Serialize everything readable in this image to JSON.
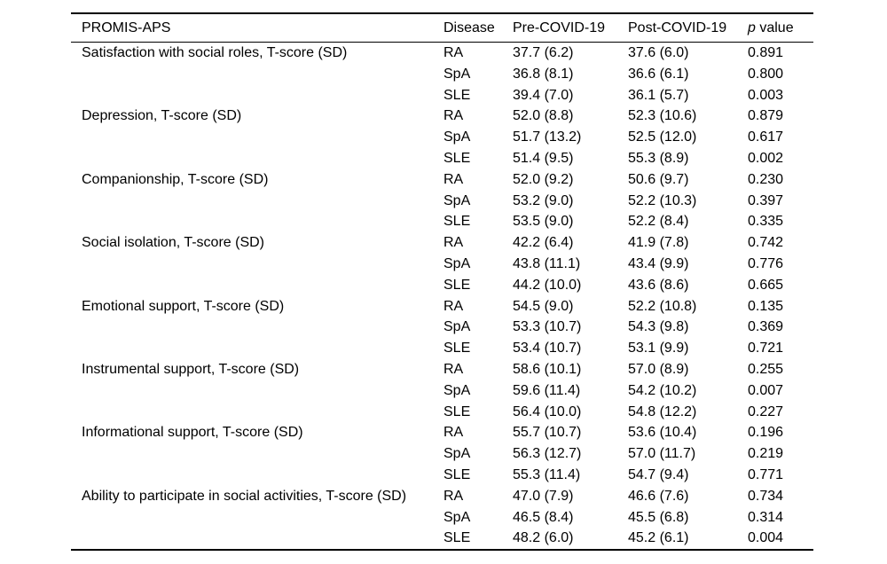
{
  "colors": {
    "background": "#ffffff",
    "text": "#000000",
    "rule": "#000000"
  },
  "table": {
    "columns": [
      "PROMIS-APS",
      "Disease",
      "Pre-COVID-19",
      "Post-COVID-19",
      "p value"
    ],
    "p_header": {
      "italic": "p",
      "rest": " value"
    },
    "groups": [
      {
        "measure": "Satisfaction with social roles, T-score (SD)",
        "rows": [
          {
            "disease": "RA",
            "pre": "37.7 (6.2)",
            "post": "37.6 (6.0)",
            "p": "0.891"
          },
          {
            "disease": "SpA",
            "pre": "36.8 (8.1)",
            "post": "36.6 (6.1)",
            "p": "0.800"
          },
          {
            "disease": "SLE",
            "pre": "39.4 (7.0)",
            "post": "36.1 (5.7)",
            "p": "0.003"
          }
        ]
      },
      {
        "measure": "Depression, T-score (SD)",
        "rows": [
          {
            "disease": "RA",
            "pre": "52.0 (8.8)",
            "post": "52.3 (10.6)",
            "p": "0.879"
          },
          {
            "disease": "SpA",
            "pre": "51.7 (13.2)",
            "post": "52.5 (12.0)",
            "p": "0.617"
          },
          {
            "disease": "SLE",
            "pre": "51.4 (9.5)",
            "post": "55.3 (8.9)",
            "p": "0.002"
          }
        ]
      },
      {
        "measure": "Companionship, T-score (SD)",
        "rows": [
          {
            "disease": "RA",
            "pre": "52.0 (9.2)",
            "post": "50.6 (9.7)",
            "p": "0.230"
          },
          {
            "disease": "SpA",
            "pre": "53.2 (9.0)",
            "post": "52.2 (10.3)",
            "p": "0.397"
          },
          {
            "disease": "SLE",
            "pre": "53.5 (9.0)",
            "post": "52.2 (8.4)",
            "p": "0.335"
          }
        ]
      },
      {
        "measure": "Social isolation, T-score (SD)",
        "rows": [
          {
            "disease": "RA",
            "pre": "42.2 (6.4)",
            "post": "41.9 (7.8)",
            "p": "0.742"
          },
          {
            "disease": "SpA",
            "pre": "43.8 (11.1)",
            "post": "43.4 (9.9)",
            "p": "0.776"
          },
          {
            "disease": "SLE",
            "pre": "44.2 (10.0)",
            "post": "43.6 (8.6)",
            "p": "0.665"
          }
        ]
      },
      {
        "measure": "Emotional support, T-score (SD)",
        "rows": [
          {
            "disease": "RA",
            "pre": "54.5 (9.0)",
            "post": "52.2 (10.8)",
            "p": "0.135"
          },
          {
            "disease": "SpA",
            "pre": "53.3 (10.7)",
            "post": "54.3 (9.8)",
            "p": "0.369"
          },
          {
            "disease": "SLE",
            "pre": "53.4 (10.7)",
            "post": "53.1 (9.9)",
            "p": "0.721"
          }
        ]
      },
      {
        "measure": "Instrumental support, T-score (SD)",
        "rows": [
          {
            "disease": "RA",
            "pre": "58.6 (10.1)",
            "post": "57.0 (8.9)",
            "p": "0.255"
          },
          {
            "disease": "SpA",
            "pre": "59.6 (11.4)",
            "post": "54.2 (10.2)",
            "p": "0.007"
          },
          {
            "disease": "SLE",
            "pre": "56.4 (10.0)",
            "post": "54.8 (12.2)",
            "p": "0.227"
          }
        ]
      },
      {
        "measure": "Informational support, T-score (SD)",
        "rows": [
          {
            "disease": "RA",
            "pre": "55.7 (10.7)",
            "post": "53.6 (10.4)",
            "p": "0.196"
          },
          {
            "disease": "SpA",
            "pre": "56.3 (12.7)",
            "post": "57.0 (11.7)",
            "p": "0.219"
          },
          {
            "disease": "SLE",
            "pre": "55.3 (11.4)",
            "post": "54.7 (9.4)",
            "p": "0.771"
          }
        ]
      },
      {
        "measure": "Ability to participate in social activities, T-score (SD)",
        "rows": [
          {
            "disease": "RA",
            "pre": "47.0 (7.9)",
            "post": "46.6 (7.6)",
            "p": "0.734"
          },
          {
            "disease": "SpA",
            "pre": "46.5 (8.4)",
            "post": "45.5 (6.8)",
            "p": "0.314"
          },
          {
            "disease": "SLE",
            "pre": "48.2 (6.0)",
            "post": "45.2 (6.1)",
            "p": "0.004"
          }
        ]
      }
    ]
  }
}
